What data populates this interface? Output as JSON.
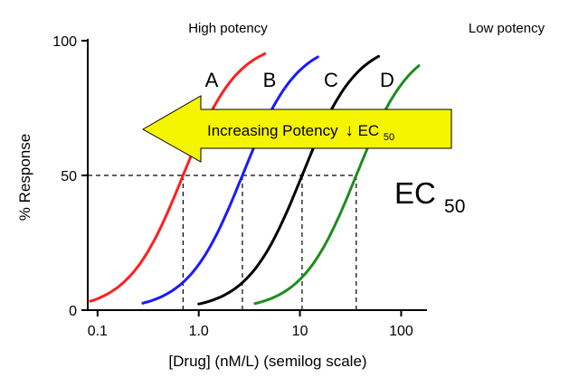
{
  "chart_data": {
    "type": "line",
    "xscale": "log",
    "xlim": [
      0.08,
      180
    ],
    "ylim": [
      0,
      100
    ],
    "xlabel": "[Drug] (nM/L) (semilog scale)",
    "ylabel": "% Response",
    "xticks": [
      {
        "value": 0.1,
        "label": "0.1"
      },
      {
        "value": 1,
        "label": "1.0"
      },
      {
        "value": 10,
        "label": "10"
      },
      {
        "value": 100,
        "label": "100"
      }
    ],
    "yticks": [
      {
        "value": 0,
        "label": "0"
      },
      {
        "value": 50,
        "label": "50"
      },
      {
        "value": 100,
        "label": "100"
      }
    ],
    "grid": false,
    "reference_line": {
      "y": 50
    },
    "series": [
      {
        "name": "A",
        "color": "#ff1f1f",
        "ec50": 0.7,
        "hill": 1.6,
        "x_start": 0.085,
        "x_end": 4.5
      },
      {
        "name": "B",
        "color": "#1a1aff",
        "ec50": 2.7,
        "hill": 1.6,
        "x_start": 0.28,
        "x_end": 15
      },
      {
        "name": "C",
        "color": "#000000",
        "ec50": 10.5,
        "hill": 1.6,
        "x_start": 1.0,
        "x_end": 60
      },
      {
        "name": "D",
        "color": "#1e8c1e",
        "ec50": 36,
        "hill": 1.6,
        "x_start": 3.6,
        "x_end": 150
      }
    ],
    "annotations": {
      "high_potency": "High potency",
      "low_potency": "Low potency",
      "arrow_text": "Increasing Potency",
      "arrow_symbol": "↓",
      "ec_main": "EC",
      "ec_sub": "50",
      "arrow_fill": "#f5f500",
      "high_color": "#ff1f1f",
      "low_color": "#1e8c1e"
    }
  }
}
